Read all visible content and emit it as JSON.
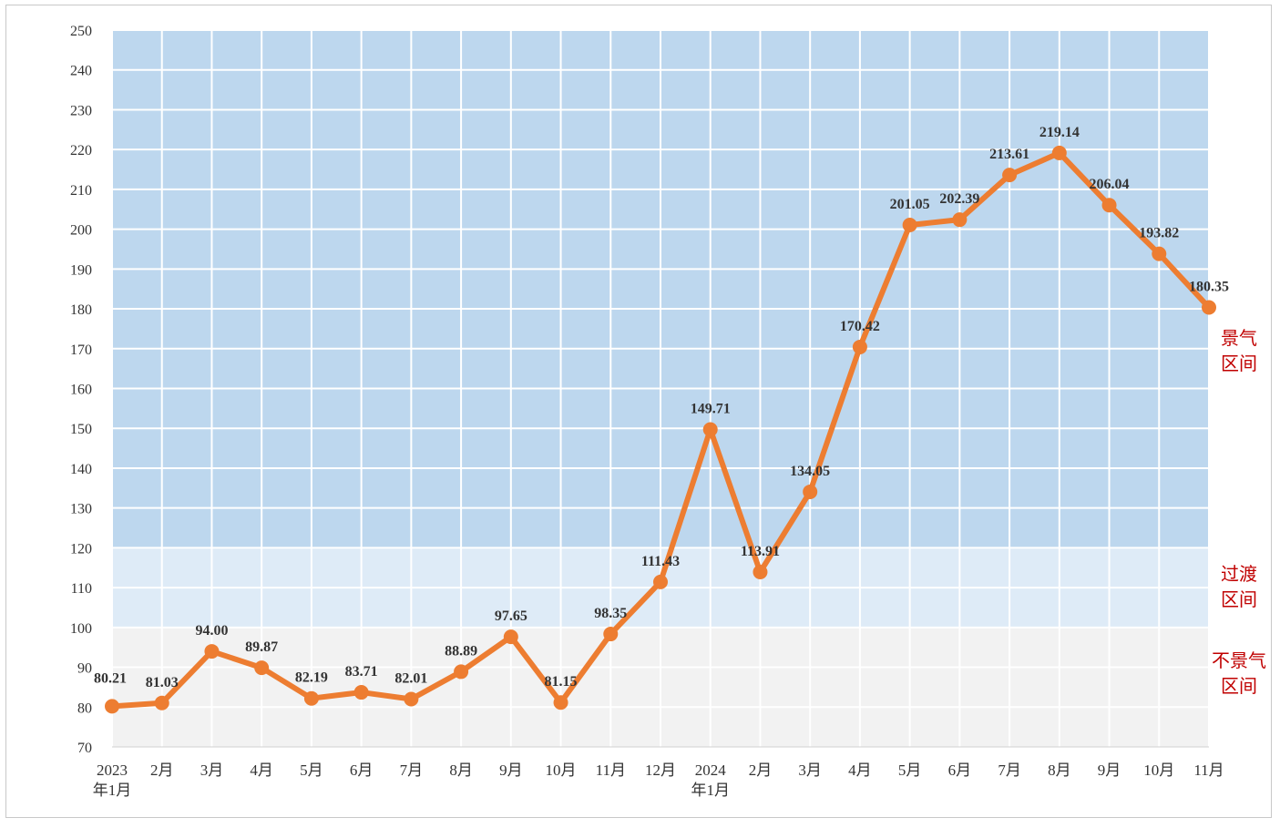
{
  "chart_data": {
    "type": "line",
    "title": "",
    "xlabel": "",
    "ylabel": "",
    "ylim": [
      70,
      250
    ],
    "yticks": [
      70,
      80,
      90,
      100,
      110,
      120,
      130,
      140,
      150,
      160,
      170,
      180,
      190,
      200,
      210,
      220,
      230,
      240,
      250
    ],
    "grid": true,
    "categories": [
      [
        "2023",
        "年1月"
      ],
      [
        "2月"
      ],
      [
        "3月"
      ],
      [
        "4月"
      ],
      [
        "5月"
      ],
      [
        "6月"
      ],
      [
        "7月"
      ],
      [
        "8月"
      ],
      [
        "9月"
      ],
      [
        "10月"
      ],
      [
        "11月"
      ],
      [
        "12月"
      ],
      [
        "2024",
        "年1月"
      ],
      [
        "2月"
      ],
      [
        "3月"
      ],
      [
        "4月"
      ],
      [
        "5月"
      ],
      [
        "6月"
      ],
      [
        "7月"
      ],
      [
        "8月"
      ],
      [
        "9月"
      ],
      [
        "10月"
      ],
      [
        "11月"
      ]
    ],
    "series": [
      {
        "color": "#ed7d31",
        "values": [
          80.21,
          81.03,
          94.0,
          89.87,
          82.19,
          83.71,
          82.01,
          88.89,
          97.65,
          81.15,
          98.35,
          111.43,
          149.71,
          113.91,
          134.05,
          170.42,
          201.05,
          202.39,
          213.61,
          219.14,
          206.04,
          193.82,
          180.35
        ],
        "labels": [
          "80.21",
          "81.03",
          "94.00",
          "89.87",
          "82.19",
          "83.71",
          "82.01",
          "88.89",
          "97.65",
          "81.15",
          "98.35",
          "111.43",
          "149.71",
          "113.91",
          "134.05",
          "170.42",
          "201.05",
          "202.39",
          "213.61",
          "219.14",
          "206.04",
          "193.82",
          "180.35"
        ]
      }
    ],
    "zones": [
      {
        "name": [
          "不景气",
          "区间"
        ],
        "range": [
          70,
          100
        ],
        "color": "#f2f2f2"
      },
      {
        "name": [
          "过渡",
          "区间"
        ],
        "range": [
          100,
          120
        ],
        "color": "#deebf7"
      },
      {
        "name": [
          "景气",
          "区间"
        ],
        "range": [
          120,
          250
        ],
        "color": "#bdd7ee"
      }
    ],
    "zone_label_color": "#c00000"
  }
}
